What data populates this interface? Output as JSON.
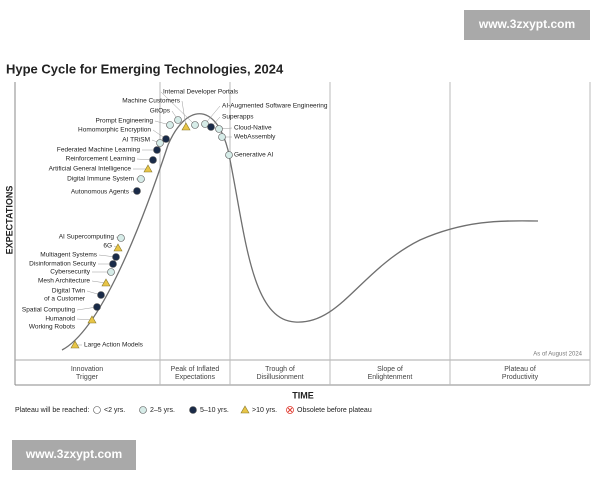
{
  "watermark_top": "www.3zxypt.com",
  "title": "Hype Cycle for Emerging Technologies, 2024",
  "y_axis_label": "EXPECTATIONS",
  "x_axis_label": "TIME",
  "note": "As of August 2024",
  "phases": [
    [
      "Innovation",
      "Trigger"
    ],
    [
      "Peak of Inflated",
      "Expectations"
    ],
    [
      "Trough of",
      "Disillusionment"
    ],
    [
      "Slope of",
      "Enlightenment"
    ],
    [
      "Plateau of",
      "Productivity"
    ]
  ],
  "legend": {
    "title": "Plateau will be reached:",
    "items": [
      {
        "label": "<2 yrs.",
        "marker": "circle",
        "color": "#ffffff"
      },
      {
        "label": "2–5 yrs.",
        "marker": "circle",
        "color": "#d6ece8",
        "technologies": [
          [
            "AI Supercomputing"
          ],
          [
            "Digital Immune System"
          ],
          [
            "AI TRiSM"
          ],
          [
            "Prompt Engineering"
          ],
          [
            "GitOps"
          ],
          [
            "Internal Developer Portals"
          ],
          [
            "AI-Augmented Software Engineering"
          ],
          [
            "Cloud-Native"
          ],
          [
            "WebAssembly"
          ],
          [
            "Generative AI"
          ],
          [
            "Cybersecurity"
          ]
        ]
      },
      {
        "label": "5–10 yrs.",
        "marker": "circle",
        "color": "#1a2b48",
        "technologies": [
          [
            "Spatial Computing"
          ],
          [
            "Digital Twin",
            "of a Customer"
          ],
          [
            "Disinformation Security"
          ],
          [
            "Multiagent Systems"
          ],
          [
            "Autonomous Agents"
          ],
          [
            "Reinforcement Learning"
          ],
          [
            "Federated Machine Learning"
          ],
          [
            "Homomorphic Encryption"
          ],
          [
            "Superapps"
          ]
        ]
      },
      {
        "label": ">10 yrs.",
        "marker": "triangle",
        "color": "#e8c547",
        "technologies": [
          [
            "Large Action Models"
          ],
          [
            "Humanoid",
            "Working Robots"
          ],
          [
            "Mesh Architecture"
          ],
          [
            "6G"
          ],
          [
            "Artificial General Intelligence"
          ],
          [
            "Machine Customers"
          ]
        ]
      },
      {
        "label": "Obsolete before plateau",
        "marker": "cross",
        "color": "#e03c31"
      }
    ]
  },
  "watermark_bottom": "www.3zxypt.com"
}
